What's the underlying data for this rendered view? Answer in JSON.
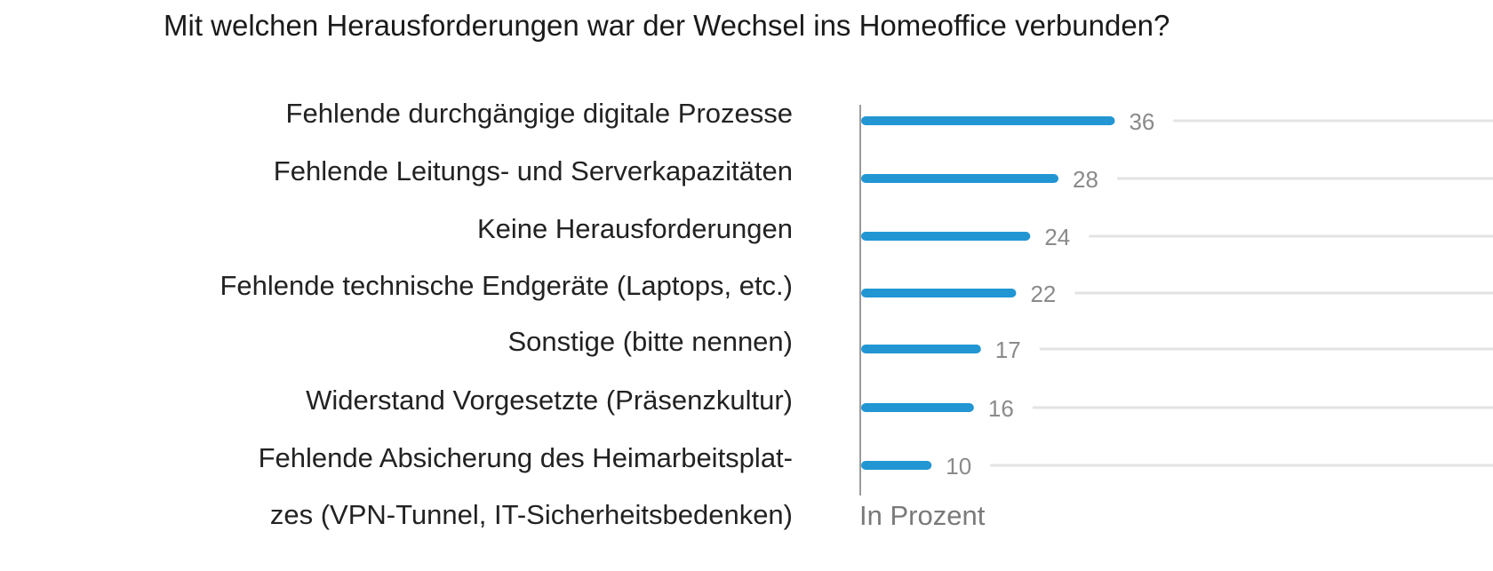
{
  "chart_data": {
    "type": "bar",
    "orientation": "horizontal",
    "title": "Mit welchen Herausforderungen war der Wechsel ins Homeoffice verbunden?",
    "axis_note": "In Prozent",
    "categories": [
      [
        "Fehlende durchgängige digitale Prozesse"
      ],
      [
        "Fehlende Leitungs- und Serverkapazitäten"
      ],
      [
        "Keine Herausforderungen"
      ],
      [
        "Fehlende technische Endgeräte (Laptops, etc.)"
      ],
      [
        "Sonstige (bitte nennen)"
      ],
      [
        "Widerstand Vorgesetzte (Präsenzkultur)"
      ],
      [
        "Fehlende Absicherung des Heimarbeitsplat-",
        "zes (VPN-Tunnel, IT-Sicherheitsbedenken)"
      ]
    ],
    "values": [
      36,
      28,
      24,
      22,
      17,
      16,
      10
    ],
    "colors": {
      "bar": "#2196d3",
      "value_label": "#8a8a8a",
      "track": "#e3e3e3",
      "axis": "#7a7a7a",
      "category_label": "#222222",
      "axis_note": "#7a7a7a"
    }
  }
}
